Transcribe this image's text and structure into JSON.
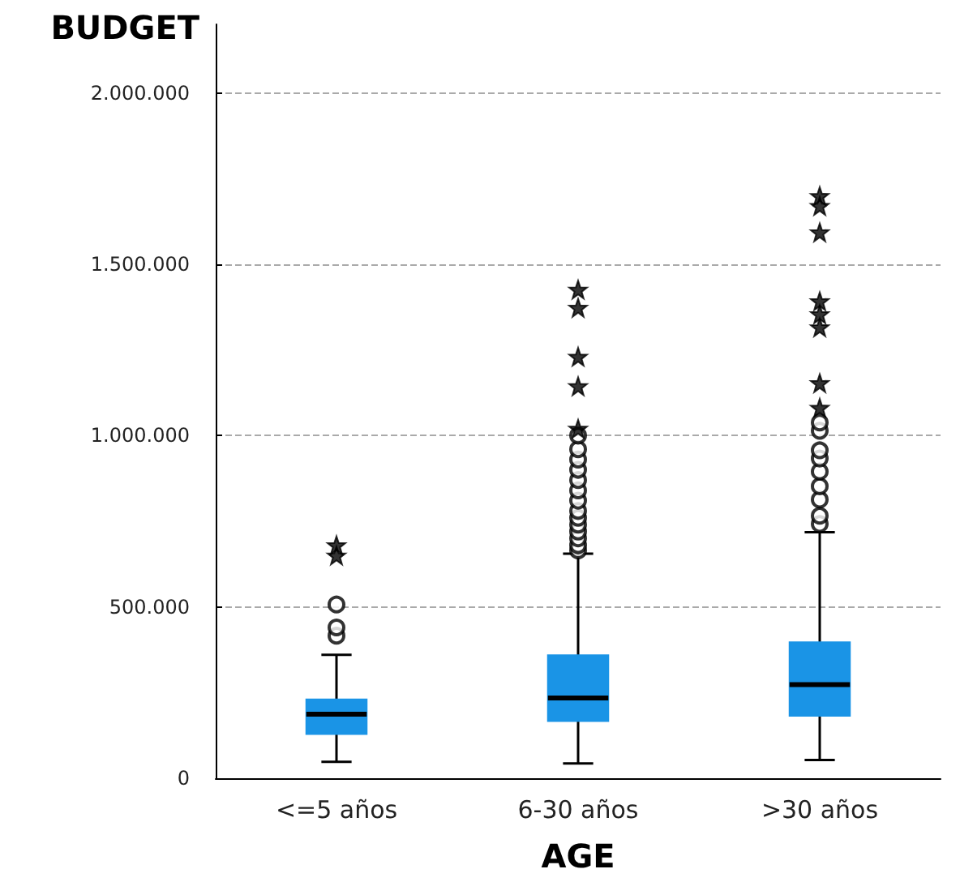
{
  "chart_data": {
    "type": "box",
    "ylabel": "BUDGET",
    "xlabel": "AGE",
    "categories": [
      "<=5 años",
      "6-30 años",
      ">30 años"
    ],
    "color": "#1a94e6",
    "boxes": [
      {
        "low": 48000,
        "q1": 129000,
        "median": 187000,
        "q3": 230000,
        "high": 360000,
        "outliers": [
          416000,
          440000,
          507000
        ]
      },
      {
        "low": 43000,
        "q1": 167000,
        "median": 234000,
        "q3": 359000,
        "high": 655000,
        "outliers": [
          665000,
          680000,
          700000,
          720000,
          740000,
          760000,
          780000,
          810000,
          840000,
          870000,
          900000,
          930000,
          960000,
          1000000
        ]
      },
      {
        "low": 53000,
        "q1": 182000,
        "median": 273000,
        "q3": 397000,
        "high": 718000,
        "outliers": [
          742000,
          766000,
          813000,
          852000,
          895000,
          933000,
          957000,
          1014000,
          1038000
        ]
      }
    ],
    "series": [
      {
        "type": "scatter",
        "marker": "star",
        "color": "#000000",
        "x": [
          "<=5 años",
          "<=5 años",
          "6-30 años",
          "6-30 años",
          "6-30 años",
          "6-30 años",
          "6-30 años",
          ">30 años",
          ">30 años",
          ">30 años",
          ">30 años",
          ">30 años",
          ">30 años",
          ">30 años",
          ">30 años"
        ],
        "values": [
          650000,
          680000,
          1020000,
          1144000,
          1230000,
          1373000,
          1426000,
          1081000,
          1153000,
          1316000,
          1354000,
          1392000,
          1593000,
          1670000,
          1699000
        ]
      }
    ],
    "ylim": [
      0,
      2200000
    ],
    "yticks": [
      {
        "value": 0,
        "label": "0"
      },
      {
        "value": 500000,
        "label": "500.000"
      },
      {
        "value": 1000000,
        "label": "1.000.000"
      },
      {
        "value": 1500000,
        "label": "1.500.000"
      },
      {
        "value": 2000000,
        "label": "2.000.000"
      }
    ],
    "grid": "y",
    "marker": "circle"
  }
}
